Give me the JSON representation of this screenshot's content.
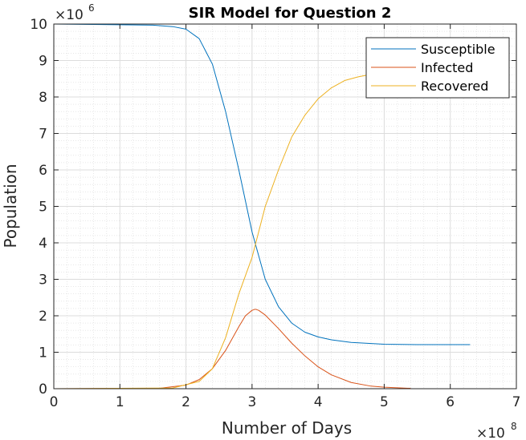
{
  "chart_data": {
    "type": "line",
    "title": "SIR Model for Question 2",
    "xlabel": "Number of Days",
    "ylabel": "Population",
    "xlim": [
      0,
      7
    ],
    "ylim": [
      0,
      10
    ],
    "x_ticks": [
      "0",
      "1",
      "2",
      "3",
      "4",
      "5",
      "6",
      "7"
    ],
    "y_ticks": [
      "0",
      "1",
      "2",
      "3",
      "4",
      "5",
      "6",
      "7",
      "8",
      "9",
      "10"
    ],
    "x_multiplier": {
      "base": "×10",
      "exp": "8"
    },
    "y_multiplier": {
      "base": "×10",
      "exp": "6"
    },
    "grid": true,
    "minor_grid": true,
    "legend_position": "top-right",
    "series": [
      {
        "name": "Susceptible",
        "color": "#0072BD",
        "x": [
          0,
          1.5,
          1.8,
          2.0,
          2.2,
          2.4,
          2.6,
          2.8,
          3.0,
          3.2,
          3.4,
          3.6,
          3.8,
          4.0,
          4.2,
          4.5,
          5.0,
          5.5,
          6.0,
          6.3
        ],
        "values": [
          10.0,
          9.97,
          9.93,
          9.86,
          9.6,
          8.9,
          7.6,
          6.0,
          4.3,
          3.0,
          2.25,
          1.8,
          1.55,
          1.42,
          1.34,
          1.27,
          1.22,
          1.21,
          1.21,
          1.21
        ]
      },
      {
        "name": "Infected",
        "color": "#D95319",
        "x": [
          0,
          1.6,
          2.0,
          2.2,
          2.4,
          2.6,
          2.8,
          2.9,
          3.0,
          3.05,
          3.1,
          3.2,
          3.4,
          3.6,
          3.8,
          4.0,
          4.2,
          4.5,
          4.8,
          5.0,
          5.4
        ],
        "values": [
          0.0,
          0.01,
          0.1,
          0.25,
          0.55,
          1.05,
          1.7,
          2.0,
          2.15,
          2.18,
          2.15,
          2.02,
          1.65,
          1.25,
          0.9,
          0.6,
          0.38,
          0.17,
          0.07,
          0.04,
          0.01
        ]
      },
      {
        "name": "Recovered",
        "color": "#EDB120",
        "x": [
          0,
          1.8,
          2.2,
          2.4,
          2.6,
          2.8,
          3.0,
          3.2,
          3.4,
          3.6,
          3.8,
          4.0,
          4.2,
          4.4,
          4.6,
          4.8,
          5.0
        ],
        "values": [
          0.0,
          0.02,
          0.2,
          0.55,
          1.4,
          2.6,
          3.6,
          5.0,
          6.0,
          6.9,
          7.5,
          7.95,
          8.25,
          8.45,
          8.55,
          8.62,
          8.68
        ]
      }
    ]
  }
}
